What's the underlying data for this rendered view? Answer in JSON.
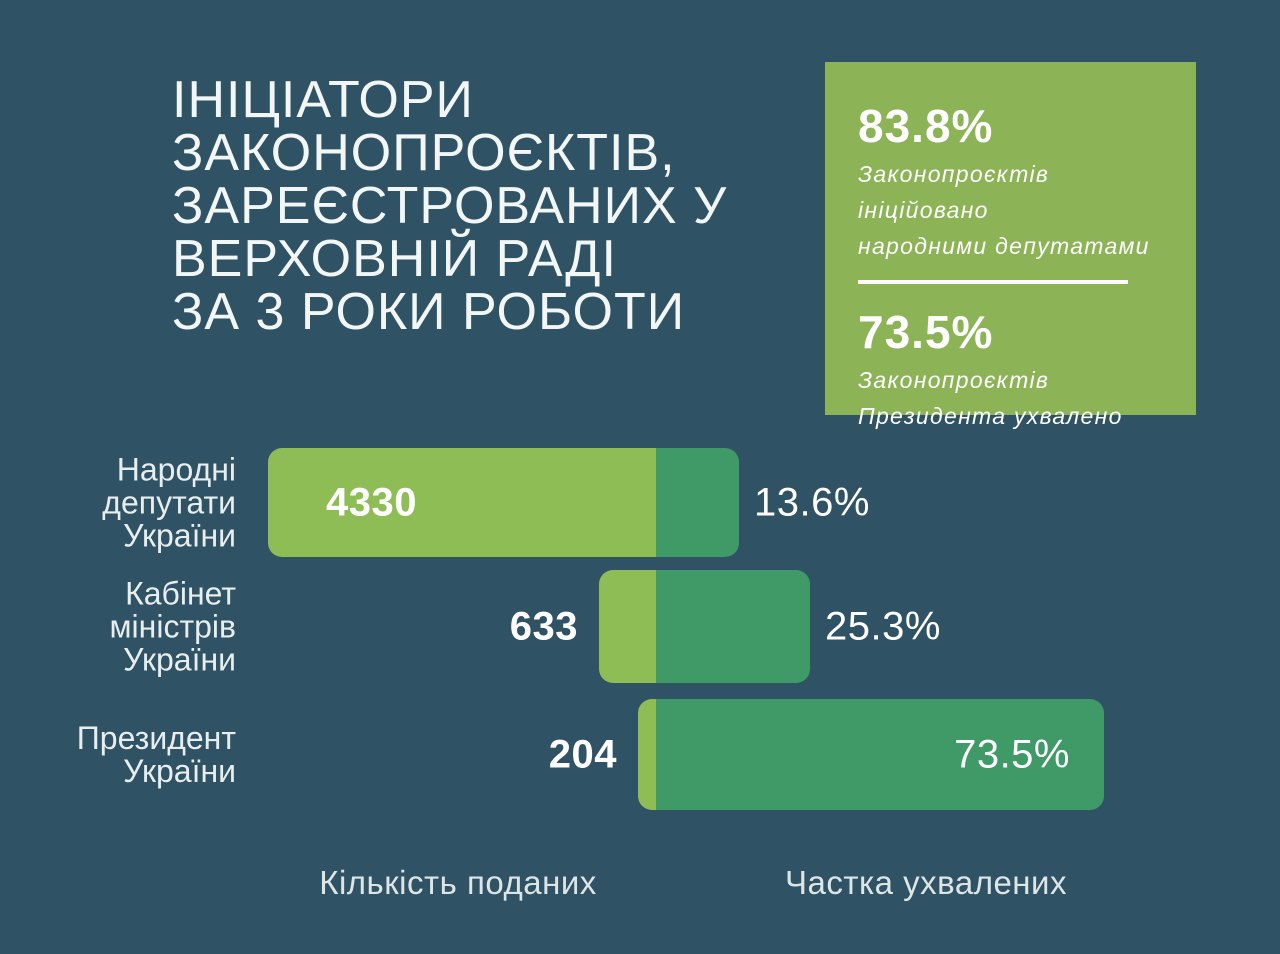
{
  "title": {
    "lines": [
      "ІНІЦІАТОРИ",
      "ЗАКОНОПРОЄКТІВ,",
      "ЗАРЕЄСТРОВАНИХ У",
      "ВЕРХОВНІЙ РАДІ",
      "ЗА 3 РОКИ РОБОТИ"
    ]
  },
  "stat_box": {
    "stats": [
      {
        "value": "83.8%",
        "description_lines": [
          "Законопроєктів ініційовано",
          "народними депутатами"
        ]
      },
      {
        "value": "73.5%",
        "description_lines": [
          "Законопроєктів",
          "Президента ухвалено"
        ]
      }
    ]
  },
  "chart_data": {
    "type": "bar",
    "variant": "diverging-horizontal",
    "categories": [
      "Народні депутати України",
      "Кабінет міністрів України",
      "Президент України"
    ],
    "series": [
      {
        "name": "Кількість поданих",
        "values": [
          4330,
          633,
          204
        ]
      },
      {
        "name": "Частка ухвалених",
        "unit": "%",
        "values": [
          13.6,
          25.3,
          73.5
        ]
      }
    ],
    "rows": [
      {
        "label_lines": [
          "Народні",
          "депутати",
          "України"
        ],
        "count": 4330,
        "count_label": "4330",
        "count_label_inside": true,
        "pct": 13.6,
        "pct_label": "13.6%",
        "pct_label_inside": false
      },
      {
        "label_lines": [
          "Кабінет",
          "міністрів",
          "України"
        ],
        "count": 633,
        "count_label": "633",
        "count_label_inside": false,
        "pct": 25.3,
        "pct_label": "25.3%",
        "pct_label_inside": false
      },
      {
        "label_lines": [
          "Президент",
          "України"
        ],
        "count": 204,
        "count_label": "204",
        "count_label_inside": false,
        "pct": 73.5,
        "pct_label": "73.5%",
        "pct_label_inside": true
      }
    ],
    "axis_labels": {
      "left": "Кількість поданих",
      "right": "Частка ухвалених"
    },
    "legend_position": "bottom",
    "grid": false
  },
  "colors": {
    "background": "#2f5265",
    "callout_green": "#8cb456",
    "bar_submitted_green": "#8dbd54",
    "bar_adopted_green": "#3f9a68",
    "text_white": "#ffffff",
    "text_muted": "#dde5e5"
  }
}
